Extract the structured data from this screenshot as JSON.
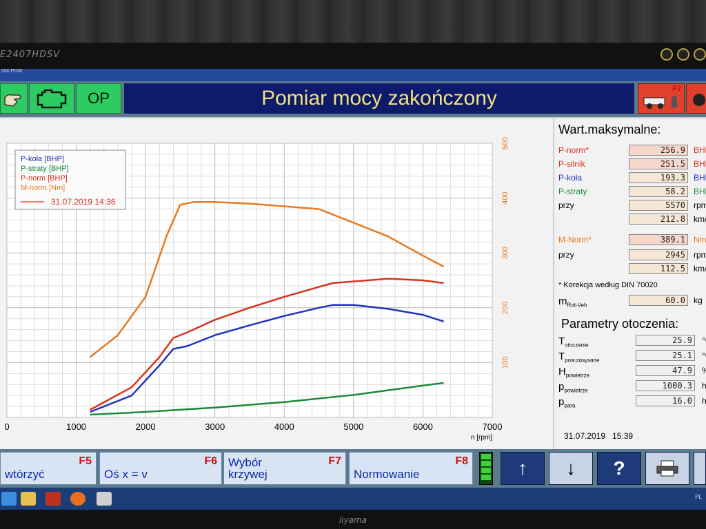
{
  "monitor": {
    "brand": "E2407HDSV",
    "bottom_brand": "iiyama"
  },
  "app": {
    "small_title": "000 POW",
    "top_buttons": {
      "op_label": "OP",
      "f2_key": "F2"
    },
    "title": "Pomiar mocy zakończony"
  },
  "legend": {
    "items": [
      "P-koła [BHP]",
      "P-straty [BHP]",
      "P-norm [BHP]",
      "M-norm [Nm]"
    ],
    "date": "31.07.2019 14:36"
  },
  "colors": {
    "p_kola": "#2233bb",
    "p_straty": "#1a8a3a",
    "p_norm": "#d8321e",
    "m_norm": "#e8781e"
  },
  "chart_data": {
    "type": "line",
    "xlabel": "n [rpm]",
    "xlim": [
      0,
      7000
    ],
    "ylim": [
      0,
      500
    ],
    "x_ticks": [
      0,
      1000,
      2000,
      3000,
      4000,
      5000,
      6000,
      7000
    ],
    "y_ticks": [
      100,
      200,
      300,
      400,
      500
    ],
    "grid": true,
    "legend_position": "top-left",
    "series": [
      {
        "name": "P-koła [BHP]",
        "color": "#2233bb",
        "x": [
          1200,
          1800,
          2200,
          2400,
          2600,
          3000,
          3500,
          4000,
          4500,
          4700,
          5000,
          5500,
          6000,
          6300
        ],
        "y": [
          10,
          40,
          95,
          125,
          130,
          150,
          168,
          185,
          200,
          205,
          205,
          198,
          187,
          175
        ]
      },
      {
        "name": "P-straty [BHP]",
        "color": "#1a8a3a",
        "x": [
          1200,
          2000,
          3000,
          4000,
          5000,
          6000,
          6300
        ],
        "y": [
          5,
          10,
          18,
          28,
          41,
          58,
          63
        ]
      },
      {
        "name": "P-norm [BHP]",
        "color": "#d8321e",
        "x": [
          1200,
          1800,
          2200,
          2400,
          2600,
          3000,
          3500,
          4000,
          4500,
          4700,
          5000,
          5500,
          6000,
          6300
        ],
        "y": [
          14,
          55,
          110,
          145,
          155,
          178,
          200,
          220,
          238,
          245,
          248,
          253,
          250,
          245
        ]
      },
      {
        "name": "M-norm [Nm]",
        "color": "#e8781e",
        "x": [
          1200,
          1600,
          2000,
          2300,
          2500,
          2700,
          3000,
          3500,
          4000,
          4500,
          5000,
          5500,
          6000,
          6300
        ],
        "y": [
          110,
          150,
          220,
          330,
          388,
          393,
          393,
          390,
          385,
          380,
          355,
          330,
          295,
          275
        ]
      }
    ]
  },
  "max_values": {
    "title": "Wart.maksymalne:",
    "rows": [
      {
        "label": "P-norm*",
        "value": "256.9",
        "unit": "BHP"
      },
      {
        "label": "P-silnik",
        "value": "251.5",
        "unit": "BHP"
      },
      {
        "label": "P-koła",
        "value": "193.3",
        "unit": "BHP"
      },
      {
        "label": "P-straty",
        "value": "58.2",
        "unit": "BHP"
      },
      {
        "label": "przy",
        "value": "5570",
        "unit": "rpm"
      },
      {
        "label": "",
        "value": "212.8",
        "unit": "km/h"
      },
      {
        "label": "M-Norm*",
        "value": "389.1",
        "unit": "Nm"
      },
      {
        "label": "przy",
        "value": "2945",
        "unit": "rpm"
      },
      {
        "label": "",
        "value": "112.5",
        "unit": "km/h"
      }
    ],
    "note": "* Korekcja według DIN 70020",
    "mrot_label": "m",
    "mrot_sub": "Rot-Veh",
    "mrot_value": "60.0",
    "mrot_unit": "kg"
  },
  "ambient": {
    "title": "Parametry otoczenia:",
    "rows": [
      {
        "sym": "T",
        "sub": "otoczenie",
        "value": "25.9",
        "unit": "°C"
      },
      {
        "sym": "T",
        "sub": "pow.zasysane",
        "value": "25.1",
        "unit": "°C"
      },
      {
        "sym": "H",
        "sub": "powietrze",
        "value": "47.9",
        "unit": "%"
      },
      {
        "sym": "p",
        "sub": "powietrze",
        "value": "1000.3",
        "unit": "hPa"
      },
      {
        "sym": "p",
        "sub": "para",
        "value": "16.0",
        "unit": "hPa"
      }
    ],
    "datetime": "31.07.2019   15:39"
  },
  "bottom_buttons": [
    {
      "text": "wtórzyć",
      "key": "F5"
    },
    {
      "text": "Oś x = v",
      "key": "F6"
    },
    {
      "text": "Wybór\nkrzywej",
      "key": "F7"
    },
    {
      "text": "Normowanie",
      "key": "F8"
    }
  ],
  "nav": {
    "up": "↑",
    "down": "↓",
    "help": "?"
  },
  "taskbar": {
    "lang": "PL"
  }
}
